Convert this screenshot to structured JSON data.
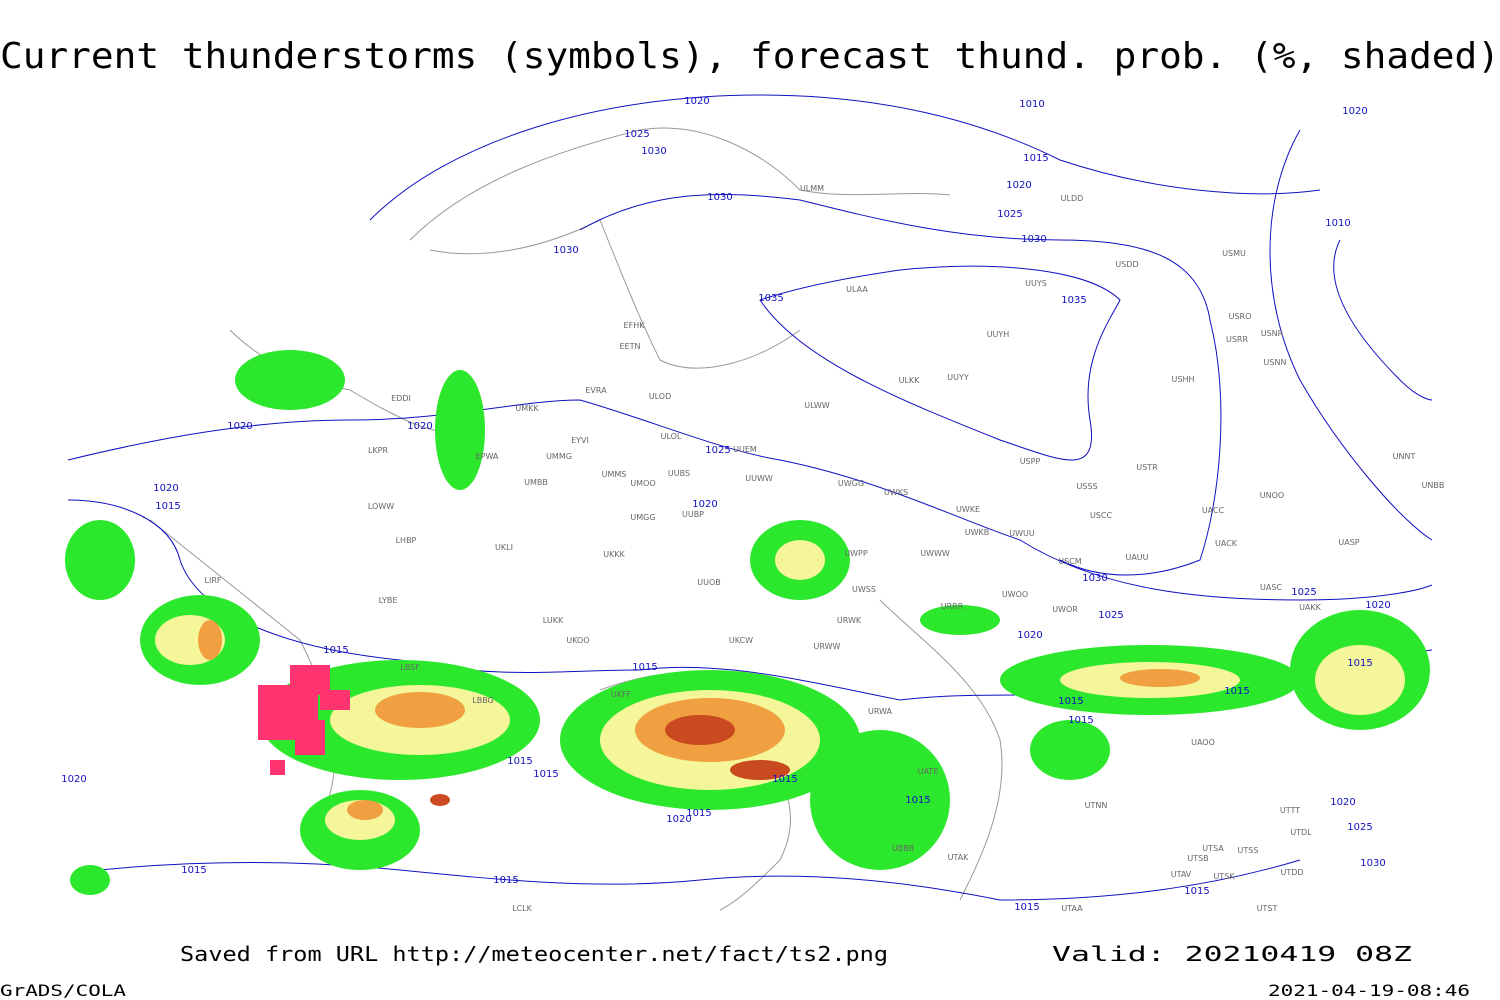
{
  "title": "Current thunderstorms (symbols), forecast thund. prob. (%, shaded)",
  "footer": {
    "source": "Saved from URL http://meteocenter.net/fact/ts2.png",
    "valid": "Valid: 20210419 08Z",
    "software": "GrADS/COLA",
    "timestamp": "2021-04-19-08:46"
  },
  "isobar_labels": [
    1020,
    1025,
    1030,
    1010,
    1015,
    1020,
    1025,
    1030,
    1030,
    1030,
    1035,
    1035,
    1020,
    1010,
    1020,
    1020,
    1020,
    1015,
    1025,
    1020,
    1030,
    1025,
    1025,
    1020,
    1020,
    1015,
    1015,
    1015,
    1015,
    1015,
    1015,
    1015,
    1015,
    1015,
    1015,
    1020,
    1015,
    1020,
    1025,
    1030,
    1015,
    1015,
    1015,
    1015,
    1020
  ],
  "station_labels": [
    "ULMM",
    "ULDD",
    "USDD",
    "USMU",
    "ULAA",
    "UUYS",
    "UUYH",
    "USRO",
    "USNR",
    "USRR",
    "USNN",
    "USHH",
    "ULKK",
    "UUYY",
    "EFHK",
    "EETN",
    "ULOD",
    "EVRA",
    "ULWW",
    "EDDI",
    "UMKK",
    "EYVI",
    "ULOL",
    "UUEM",
    "EPWA",
    "UMMG",
    "UMMS",
    "UUBS",
    "UMOO",
    "UUWW",
    "UNOO",
    "UNNT",
    "UNBB",
    "USPP",
    "USTR",
    "USSS",
    "LKPR",
    "LOWW",
    "UMBB",
    "UWGG",
    "UWKS",
    "UMGG",
    "UUBP",
    "USCC",
    "UACC",
    "LHBP",
    "UKLI",
    "UKKK",
    "UWPP",
    "UWWW",
    "UWKE",
    "UWKB",
    "UWUU",
    "USCM",
    "UAUU",
    "UACK",
    "UASP",
    "LIRF",
    "LYBE",
    "UUOB",
    "UWSS",
    "URRR",
    "UWOO",
    "UWOR",
    "UASC",
    "UAKK",
    "LUKK",
    "UKOO",
    "UKCW",
    "URWW",
    "URWK",
    "LBSF",
    "LBBG",
    "UKFF",
    "URWA",
    "UATE",
    "UAOO",
    "UTNN",
    "UTTT",
    "UTDL",
    "UTSA",
    "UTSS",
    "UTSB",
    "UTAK",
    "UBBB",
    "UTAV",
    "UTSK",
    "UTAA",
    "LCLK",
    "UTDD",
    "UTST"
  ]
}
